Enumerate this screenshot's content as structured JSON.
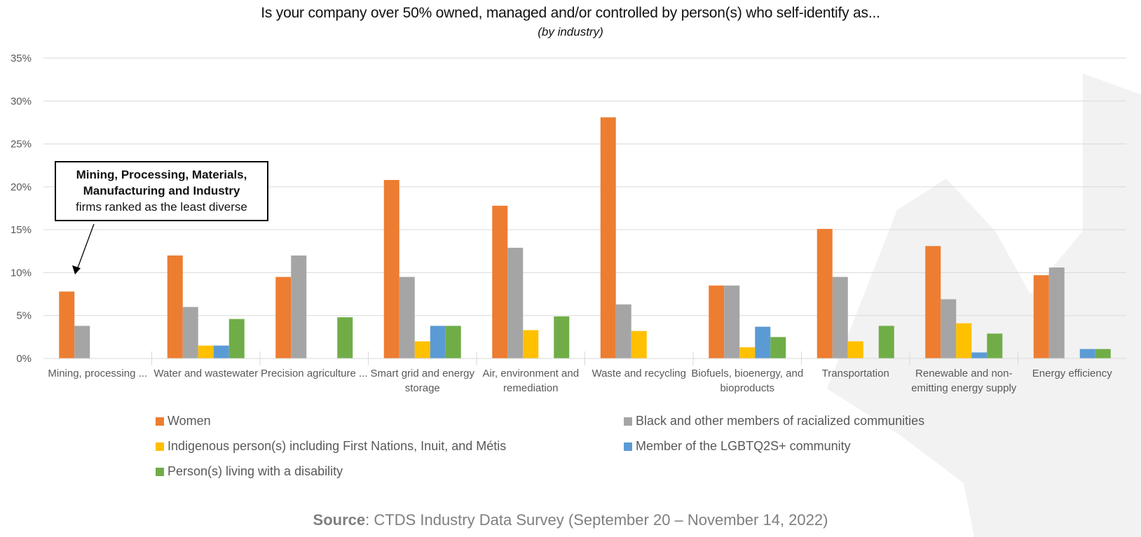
{
  "chart_data": {
    "type": "bar",
    "title": "Is your company over 50% owned, managed and/or controlled by person(s) who self-identify as...",
    "subtitle": "(by industry)",
    "xlabel": "",
    "ylabel": "",
    "ylim": [
      0,
      35
    ],
    "y_ticks": [
      "0%",
      "5%",
      "10%",
      "15%",
      "20%",
      "25%",
      "30%",
      "35%"
    ],
    "y_tick_values": [
      0,
      5,
      10,
      15,
      20,
      25,
      30,
      35
    ],
    "grid": true,
    "legend_position": "bottom",
    "categories": [
      "Mining, processing ...",
      "Water and wastewater",
      "Precision agriculture ...",
      "Smart grid and energy storage",
      "Air, environment and remediation",
      "Waste and recycling",
      "Biofuels, bioenergy, and bioproducts",
      "Transportation",
      "Renewable and non-emitting energy supply",
      "Energy efficiency"
    ],
    "series": [
      {
        "name": "Women",
        "color": "#ED7D31",
        "values": [
          7.8,
          12.0,
          9.5,
          20.8,
          17.8,
          28.1,
          8.5,
          15.1,
          13.1,
          9.7
        ]
      },
      {
        "name": "Black and other members of racialized communities",
        "color": "#A5A5A5",
        "values": [
          3.8,
          6.0,
          12.0,
          9.5,
          12.9,
          6.3,
          8.5,
          9.5,
          6.9,
          10.6
        ]
      },
      {
        "name": "Indigenous person(s) including First Nations, Inuit, and Métis",
        "color": "#FFC000",
        "values": [
          0,
          1.5,
          0,
          2.0,
          3.3,
          3.2,
          1.3,
          2.0,
          4.1,
          0
        ]
      },
      {
        "name": "Member of the LGBTQ2S+ community",
        "color": "#5B9BD5",
        "values": [
          0,
          1.5,
          0,
          3.8,
          0,
          0,
          3.7,
          0,
          0.7,
          1.1
        ]
      },
      {
        "name": "Person(s) living with a disability",
        "color": "#70AD47",
        "values": [
          0,
          4.6,
          4.8,
          3.8,
          4.9,
          0,
          2.5,
          3.8,
          2.9,
          1.1
        ]
      }
    ],
    "annotations": [
      {
        "bold_text": "Mining, Processing, Materials, Manufacturing and Industry",
        "text": "firms ranked as the least diverse",
        "points_to": "Mining, processing ..."
      }
    ]
  },
  "source": {
    "label": "Source",
    "text": ": CTDS Industry Data Survey (September 20 – November 14, 2022)"
  }
}
